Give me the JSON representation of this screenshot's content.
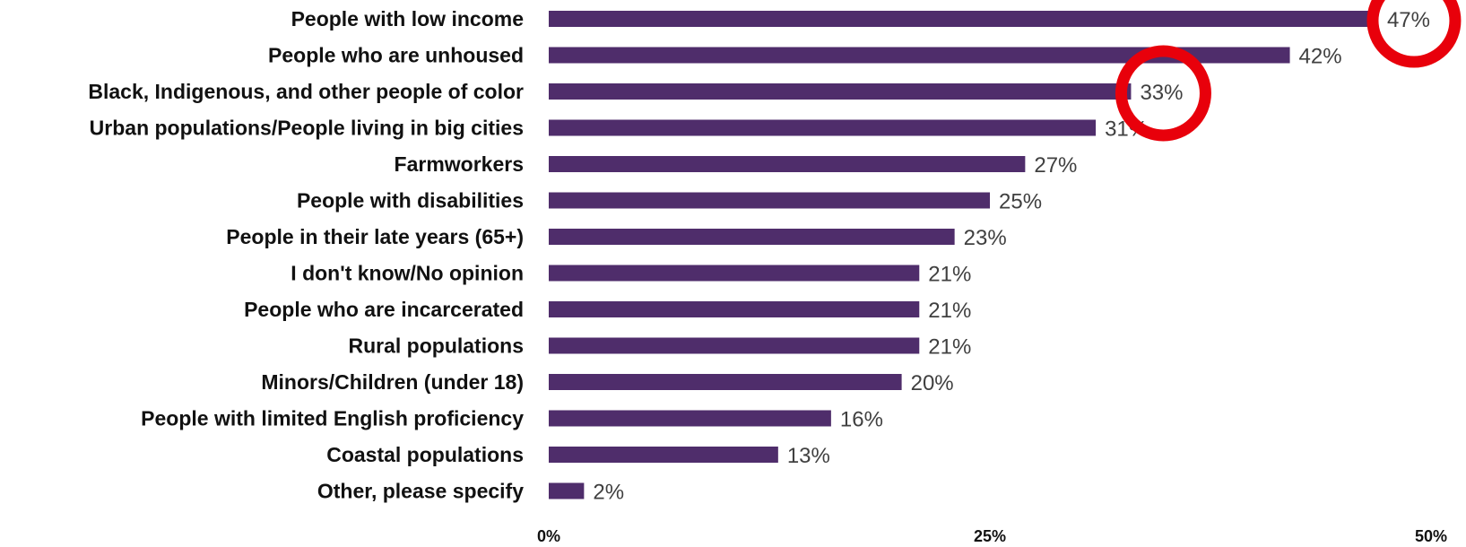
{
  "chart_data": {
    "type": "bar",
    "orientation": "horizontal",
    "categories": [
      "People with low income",
      "People who are unhoused",
      "Black, Indigenous, and other people of color",
      "Urban populations/People living in big cities",
      "Farmworkers",
      "People with disabilities",
      "People in their late years (65+)",
      "I don't know/No opinion",
      "People who are incarcerated",
      "Rural populations",
      "Minors/Children (under 18)",
      "People with limited English proficiency",
      "Coastal populations",
      "Other, please specify"
    ],
    "values": [
      47,
      42,
      33,
      31,
      27,
      25,
      23,
      21,
      21,
      21,
      20,
      16,
      13,
      2
    ],
    "value_labels": [
      "47%",
      "42%",
      "33%",
      "31%",
      "27%",
      "25%",
      "23%",
      "21%",
      "21%",
      "21%",
      "20%",
      "16%",
      "13%",
      "2%"
    ],
    "xlim": [
      0,
      50
    ],
    "x_ticks": [
      0,
      25,
      50
    ],
    "x_tick_labels": [
      "0%",
      "25%",
      "50%"
    ],
    "grid": false,
    "bar_color": "#4f2d6b",
    "highlight_color": "#e8000b",
    "highlights": [
      {
        "category": "People with low income",
        "shape": "circle"
      },
      {
        "category": "Black, Indigenous, and other people of color",
        "shape": "circle"
      }
    ]
  }
}
